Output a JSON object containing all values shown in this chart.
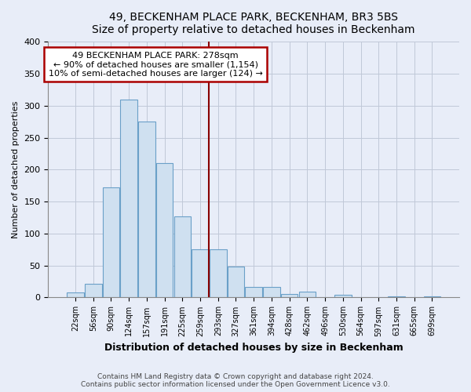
{
  "title": "49, BECKENHAM PLACE PARK, BECKENHAM, BR3 5BS",
  "subtitle": "Size of property relative to detached houses in Beckenham",
  "xlabel": "Distribution of detached houses by size in Beckenham",
  "ylabel": "Number of detached properties",
  "bar_labels": [
    "22sqm",
    "56sqm",
    "90sqm",
    "124sqm",
    "157sqm",
    "191sqm",
    "225sqm",
    "259sqm",
    "293sqm",
    "327sqm",
    "361sqm",
    "394sqm",
    "428sqm",
    "462sqm",
    "496sqm",
    "530sqm",
    "564sqm",
    "597sqm",
    "631sqm",
    "665sqm",
    "699sqm"
  ],
  "bar_values": [
    8,
    22,
    172,
    310,
    275,
    210,
    127,
    75,
    75,
    48,
    16,
    16,
    6,
    9,
    0,
    4,
    0,
    0,
    2,
    0,
    2
  ],
  "bar_color": "#cfe0f0",
  "bar_edge_color": "#6aa0c8",
  "marker_label": "49 BECKENHAM PLACE PARK: 278sqm",
  "annotation_line1": "← 90% of detached houses are smaller (1,154)",
  "annotation_line2": "10% of semi-detached houses are larger (124) →",
  "vline_color": "#880000",
  "vline_x": 8.0,
  "ylim": [
    0,
    400
  ],
  "yticks": [
    0,
    50,
    100,
    150,
    200,
    250,
    300,
    350,
    400
  ],
  "footer1": "Contains HM Land Registry data © Crown copyright and database right 2024.",
  "footer2": "Contains public sector information licensed under the Open Government Licence v3.0.",
  "bg_color": "#e8edf8",
  "plot_bg_color": "#e8edf8",
  "annotation_box_color": "#ffffff",
  "annotation_box_edge": "#aa0000"
}
